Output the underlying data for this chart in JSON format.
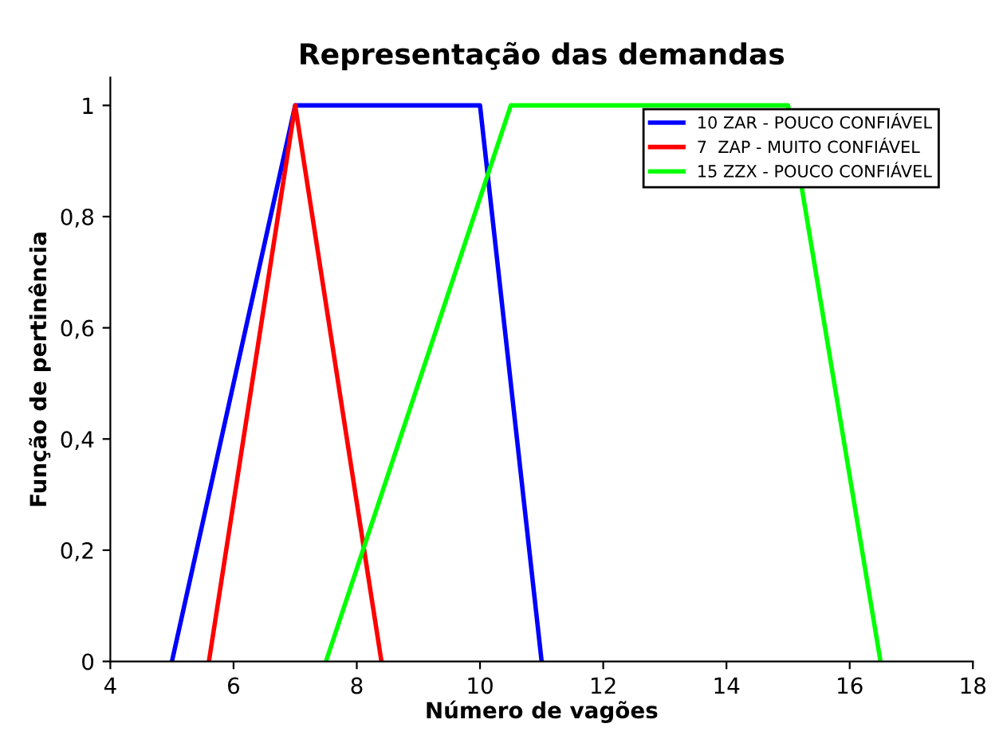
{
  "chart_data": {
    "type": "line",
    "title": "Representação das demandas",
    "xlabel": "Número de vagões",
    "ylabel": "Função de pertinência",
    "series": [
      {
        "name": "10 ZAR - POUCO CONFIÁVEL",
        "color": "#0000ff",
        "x": [
          5,
          7,
          10,
          11
        ],
        "values": [
          0,
          1,
          1,
          0
        ]
      },
      {
        "name": "7  ZAP - MUITO CONFIÁVEL",
        "color": "#ff0000",
        "x": [
          5.6,
          7,
          8.4
        ],
        "values": [
          0,
          1,
          0
        ]
      },
      {
        "name": "15 ZZX - POUCO CONFIÁVEL",
        "color": "#00ff00",
        "x": [
          7.5,
          10.5,
          15,
          16.5
        ],
        "values": [
          0,
          1,
          1,
          0
        ]
      }
    ],
    "xlim": [
      4,
      18
    ],
    "xticks": [
      4,
      6,
      8,
      10,
      12,
      14,
      16,
      18
    ],
    "ylim": [
      0,
      1.05
    ],
    "yticks": [
      0,
      {
        "value": 0.2,
        "label": "0,2"
      },
      {
        "value": 0.4,
        "label": "0,4"
      },
      {
        "value": 0.6,
        "label": "0,6"
      },
      {
        "value": 0.8,
        "label": "0,8"
      },
      1
    ],
    "legend": "top right",
    "grid": false,
    "marker": "none",
    "line_style": "solid"
  }
}
